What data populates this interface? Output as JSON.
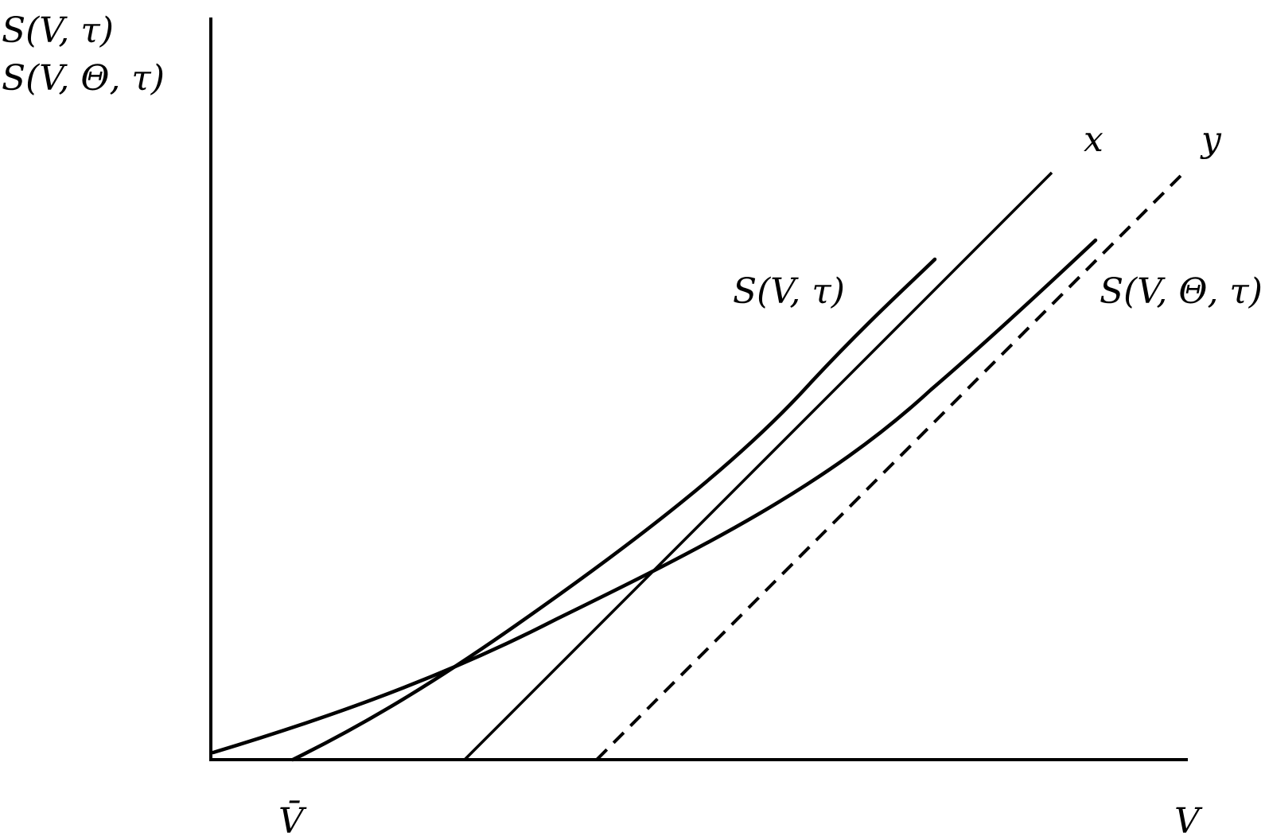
{
  "labels": {
    "y_axis_line1": "S(V, τ)",
    "y_axis_line2": "S(V, Θ, τ)",
    "x_axis": "V",
    "v_bar": "V̄",
    "line_x": "x",
    "line_y": "y",
    "curve_s1": "S(V, τ)",
    "curve_s2": "S(V, Θ, τ)"
  },
  "colors": {
    "ink": "#000000",
    "background": "#ffffff"
  }
}
